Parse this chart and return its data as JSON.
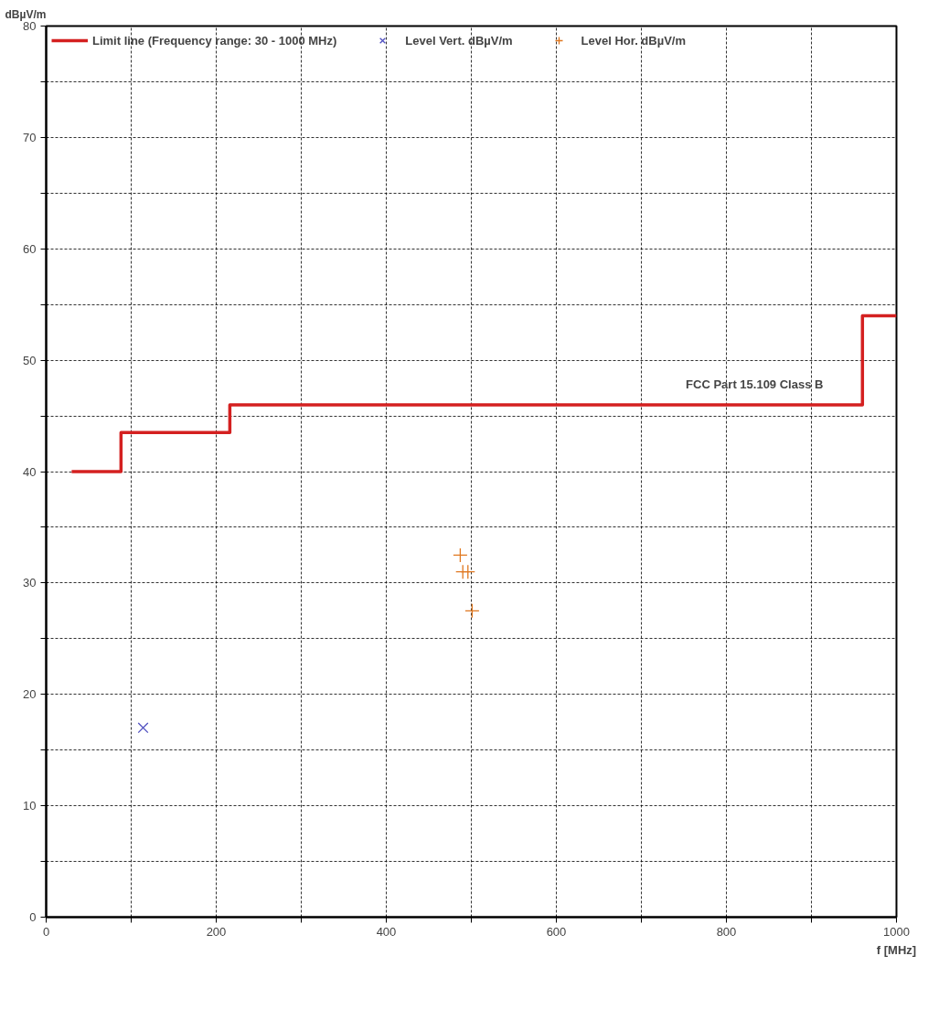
{
  "chart_data": {
    "type": "scatter",
    "xlabel": "f [MHz]",
    "ylabel": "dBµV/m",
    "xlim": [
      0,
      1000
    ],
    "ylim": [
      0,
      80
    ],
    "xticks": [
      0,
      {
        "value": 100,
        "label": null
      },
      200,
      {
        "value": 300,
        "label": null
      },
      400,
      {
        "value": 500,
        "label": null
      },
      600,
      {
        "value": 700,
        "label": null
      },
      800,
      {
        "value": 900,
        "label": null
      },
      1000
    ],
    "yticks": [
      0,
      {
        "value": 5,
        "label": null
      },
      10,
      {
        "value": 15,
        "label": null
      },
      20,
      {
        "value": 25,
        "label": null
      },
      30,
      {
        "value": 35,
        "label": null
      },
      40,
      {
        "value": 45,
        "label": null
      },
      50,
      {
        "value": 55,
        "label": null
      },
      60,
      {
        "value": 65,
        "label": null
      },
      70,
      {
        "value": 75,
        "label": null
      },
      80
    ],
    "grid": true,
    "legend": "top",
    "series": [
      {
        "name": "Limit line (Frequency range: 30 - 1000 MHz)",
        "type": "step",
        "color": "#d42020",
        "x": [
          30,
          88,
          216,
          960,
          1000
        ],
        "values": [
          40,
          43.5,
          46,
          54,
          54
        ],
        "line_style": "solid"
      },
      {
        "name": "Level Vert. dBµV/m",
        "color": "#5050c0",
        "x": [
          114
        ],
        "values": [
          17.0
        ],
        "marker": "x"
      },
      {
        "name": "Level Hor. dBµV/m",
        "color": "#e07820",
        "x": [
          487,
          490,
          496,
          501
        ],
        "values": [
          32.5,
          31.0,
          31.0,
          27.5
        ],
        "marker": "cross"
      }
    ],
    "annotations": [
      "FCC Part 15.109 Class  B"
    ]
  }
}
